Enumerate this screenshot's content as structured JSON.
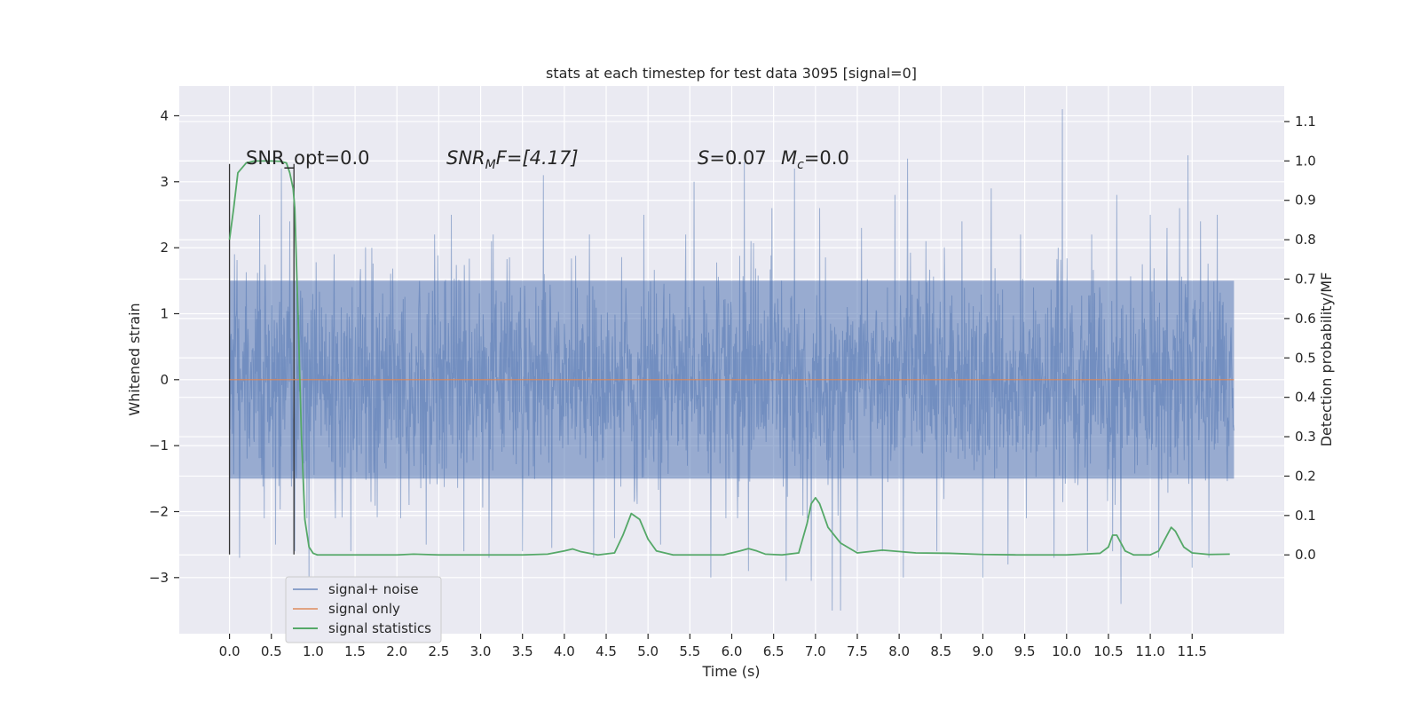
{
  "chart_data": {
    "type": "line",
    "title": "stats at each timestep for test data 3095 [signal=0]",
    "xlabel": "Time (s)",
    "ylabel": "Whitened strain",
    "ylabel_right": "Detection probability/MF",
    "xlim": [
      -0.6,
      12.6
    ],
    "ylim": [
      -3.85,
      4.45
    ],
    "ylim_right": [
      -0.2,
      1.19
    ],
    "x_ticks": [
      "0.0",
      "0.5",
      "1.0",
      "1.5",
      "2.0",
      "2.5",
      "3.0",
      "3.5",
      "4.0",
      "4.5",
      "5.0",
      "5.5",
      "6.0",
      "6.5",
      "7.0",
      "7.5",
      "8.0",
      "8.5",
      "9.0",
      "9.5",
      "10.0",
      "10.5",
      "11.0",
      "11.5"
    ],
    "y_ticks": [
      "4",
      "3",
      "2",
      "1",
      "0",
      "−1",
      "−2",
      "−3"
    ],
    "y_ticks_right": [
      "1.1",
      "1.0",
      "0.9",
      "0.8",
      "0.7",
      "0.6",
      "0.5",
      "0.4",
      "0.3",
      "0.2",
      "0.1",
      "0.0"
    ],
    "grid": true,
    "legend_position": "lower-left",
    "annotations": {
      "snr_opt": "SNR_opt=0.0",
      "snr_mf_main": "SNR",
      "snr_mf_sub": "M",
      "snr_mf_rest": "F=[4.17]",
      "s_main": "S",
      "s_rest": "=0.07",
      "mc_main": "M",
      "mc_sub": "c",
      "mc_rest": "=0.0"
    },
    "markers": {
      "vlines_x": [
        0.0,
        0.77
      ],
      "vline_range": [
        -2.65,
        3.27
      ]
    },
    "series": [
      {
        "name": "signal+ noise",
        "color": "#4c72b0",
        "t_range": [
          0.0,
          12.0
        ],
        "band": [
          -1.5,
          1.5
        ],
        "peaks_up": [
          [
            0.06,
            1.9
          ],
          [
            0.36,
            2.5
          ],
          [
            0.55,
            1.9
          ],
          [
            0.62,
            3.2
          ],
          [
            0.72,
            2.4
          ],
          [
            1.25,
            1.9
          ],
          [
            1.7,
            2.0
          ],
          [
            2.45,
            2.2
          ],
          [
            2.65,
            2.5
          ],
          [
            3.15,
            2.2
          ],
          [
            3.75,
            3.1
          ],
          [
            4.3,
            2.2
          ],
          [
            4.95,
            2.5
          ],
          [
            5.45,
            2.2
          ],
          [
            5.55,
            3.0
          ],
          [
            5.75,
            3.1
          ],
          [
            6.15,
            3.3
          ],
          [
            6.48,
            2.6
          ],
          [
            6.75,
            3.2
          ],
          [
            7.05,
            2.6
          ],
          [
            7.2,
            2.9
          ],
          [
            7.55,
            2.3
          ],
          [
            7.95,
            2.8
          ],
          [
            8.1,
            3.35
          ],
          [
            8.75,
            2.4
          ],
          [
            9.1,
            2.9
          ],
          [
            9.45,
            2.2
          ],
          [
            9.9,
            2.0
          ],
          [
            9.95,
            4.1
          ],
          [
            10.3,
            2.2
          ],
          [
            10.6,
            2.8
          ],
          [
            11.0,
            2.5
          ],
          [
            11.2,
            2.3
          ],
          [
            11.35,
            2.6
          ],
          [
            11.45,
            3.4
          ],
          [
            11.6,
            2.4
          ],
          [
            11.8,
            2.5
          ]
        ],
        "peaks_down": [
          [
            0.12,
            -2.7
          ],
          [
            0.55,
            -2.5
          ],
          [
            0.78,
            -2.6
          ],
          [
            0.95,
            -3.1
          ],
          [
            1.45,
            -2.6
          ],
          [
            2.35,
            -2.5
          ],
          [
            2.8,
            -2.6
          ],
          [
            3.1,
            -2.7
          ],
          [
            3.5,
            -2.6
          ],
          [
            3.85,
            -2.55
          ],
          [
            4.35,
            -2.7
          ],
          [
            4.6,
            -2.4
          ],
          [
            5.15,
            -2.5
          ],
          [
            5.75,
            -3.0
          ],
          [
            6.2,
            -2.9
          ],
          [
            6.65,
            -3.05
          ],
          [
            6.95,
            -3.05
          ],
          [
            7.2,
            -3.5
          ],
          [
            7.3,
            -3.5
          ],
          [
            7.5,
            -2.6
          ],
          [
            7.8,
            -2.6
          ],
          [
            8.05,
            -3.0
          ],
          [
            8.45,
            -2.6
          ],
          [
            9.0,
            -3.0
          ],
          [
            9.3,
            -2.8
          ],
          [
            9.85,
            -2.7
          ],
          [
            10.25,
            -2.6
          ],
          [
            10.55,
            -2.6
          ],
          [
            10.65,
            -3.4
          ],
          [
            11.1,
            -2.7
          ],
          [
            11.5,
            -2.85
          ],
          [
            11.7,
            -2.7
          ]
        ]
      },
      {
        "name": "signal only",
        "color": "#dd8452",
        "t": [
          0.0,
          12.0
        ],
        "y": [
          0.0,
          0.0
        ]
      },
      {
        "name": "signal statistics",
        "color": "#55a868",
        "axis": "right",
        "t": [
          0.0,
          0.05,
          0.1,
          0.2,
          0.3,
          0.5,
          0.6,
          0.68,
          0.72,
          0.76,
          0.78,
          0.82,
          0.86,
          0.9,
          0.95,
          1.0,
          1.05,
          1.2,
          1.5,
          2.0,
          2.2,
          2.5,
          3.0,
          3.5,
          3.8,
          4.0,
          4.1,
          4.2,
          4.4,
          4.6,
          4.7,
          4.8,
          4.9,
          5.0,
          5.1,
          5.3,
          5.6,
          5.9,
          6.1,
          6.2,
          6.3,
          6.4,
          6.6,
          6.8,
          6.9,
          6.95,
          7.0,
          7.05,
          7.15,
          7.3,
          7.5,
          7.8,
          8.2,
          8.6,
          9.0,
          9.4,
          10.0,
          10.4,
          10.5,
          10.55,
          10.6,
          10.7,
          10.8,
          11.0,
          11.1,
          11.2,
          11.25,
          11.3,
          11.4,
          11.5,
          11.7,
          11.95
        ],
        "y": [
          0.8,
          0.88,
          0.97,
          0.995,
          1.0,
          1.0,
          0.999,
          0.995,
          0.97,
          0.93,
          0.88,
          0.6,
          0.3,
          0.09,
          0.02,
          0.004,
          0.0,
          0.0,
          0.0,
          0.0,
          0.002,
          0.0,
          0.0,
          0.0,
          0.002,
          0.01,
          0.015,
          0.008,
          0.0,
          0.005,
          0.05,
          0.105,
          0.09,
          0.04,
          0.01,
          0.0,
          0.0,
          0.0,
          0.01,
          0.016,
          0.01,
          0.002,
          0.0,
          0.005,
          0.08,
          0.13,
          0.145,
          0.13,
          0.07,
          0.03,
          0.005,
          0.012,
          0.005,
          0.004,
          0.001,
          0.0,
          0.0,
          0.004,
          0.02,
          0.05,
          0.05,
          0.01,
          0.0,
          0.0,
          0.01,
          0.05,
          0.07,
          0.06,
          0.02,
          0.005,
          0.001,
          0.002
        ]
      }
    ]
  }
}
